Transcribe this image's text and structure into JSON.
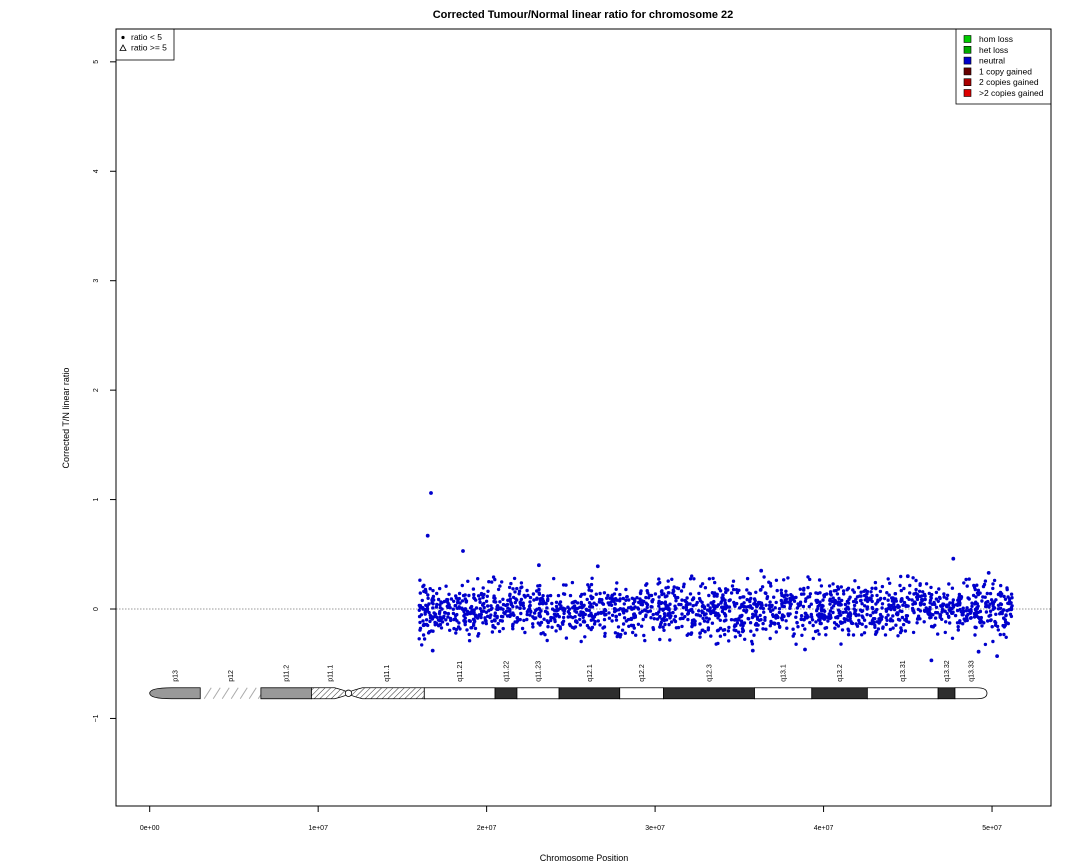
{
  "chart_data": {
    "type": "scatter",
    "title": "Corrected Tumour/Normal linear ratio for chromosome  22",
    "xlabel": "Chromosome Position",
    "ylabel": "Corrected T/N linear ratio",
    "xlim": [
      -2000000,
      53500000
    ],
    "ylim": [
      -1.8,
      5.3
    ],
    "x_ticks": [
      {
        "value": 0,
        "label": "0e+00"
      },
      {
        "value": 10000000,
        "label": "1e+07"
      },
      {
        "value": 20000000,
        "label": "2e+07"
      },
      {
        "value": 30000000,
        "label": "3e+07"
      },
      {
        "value": 40000000,
        "label": "4e+07"
      },
      {
        "value": 50000000,
        "label": "5e+07"
      }
    ],
    "y_ticks": [
      {
        "value": -1,
        "label": "−1"
      },
      {
        "value": 0,
        "label": "0"
      },
      {
        "value": 1,
        "label": "1"
      },
      {
        "value": 2,
        "label": "2"
      },
      {
        "value": 3,
        "label": "3"
      },
      {
        "value": 4,
        "label": "4"
      },
      {
        "value": 5,
        "label": "5"
      }
    ],
    "reference_line": 0,
    "grid": false,
    "series": [
      {
        "name": "neutral",
        "color": "#0000cc",
        "marker": "circle",
        "x_range": [
          16000000,
          51200000
        ],
        "y_mean": 0.0,
        "y_sd": 0.12,
        "count": 1900,
        "outliers": [
          {
            "x": 16700000,
            "y": 1.06
          },
          {
            "x": 16500000,
            "y": 0.67
          },
          {
            "x": 18600000,
            "y": 0.53
          },
          {
            "x": 47700000,
            "y": 0.46
          },
          {
            "x": 23100000,
            "y": 0.4
          },
          {
            "x": 26600000,
            "y": 0.39
          },
          {
            "x": 36300000,
            "y": 0.35
          },
          {
            "x": 49800000,
            "y": 0.33
          },
          {
            "x": 45000000,
            "y": 0.3
          },
          {
            "x": 46400000,
            "y": -0.47
          },
          {
            "x": 50300000,
            "y": -0.43
          },
          {
            "x": 16800000,
            "y": -0.38
          },
          {
            "x": 35800000,
            "y": -0.38
          },
          {
            "x": 38900000,
            "y": -0.37
          },
          {
            "x": 49200000,
            "y": -0.39
          }
        ]
      }
    ],
    "marker_legend": {
      "position": "top-left",
      "items": [
        {
          "label": "ratio < 5",
          "symbol": "dot"
        },
        {
          "label": "ratio >= 5",
          "symbol": "triangle"
        }
      ]
    },
    "state_legend": {
      "position": "top-right",
      "items": [
        {
          "label": "hom loss",
          "color": "#00cc00"
        },
        {
          "label": "het loss",
          "color": "#00aa00"
        },
        {
          "label": "neutral",
          "color": "#0000cc"
        },
        {
          "label": "1 copy gained",
          "color": "#660000"
        },
        {
          "label": "2 copies gained",
          "color": "#aa0000"
        },
        {
          "label": ">2 copies gained",
          "color": "#dd0000"
        }
      ]
    },
    "ideogram": {
      "y": -0.77,
      "bands": [
        {
          "name": "p13",
          "start": 0,
          "end": 3000000,
          "stain": "gvar"
        },
        {
          "name": "p12",
          "start": 3000000,
          "end": 6600000,
          "stain": "stalk"
        },
        {
          "name": "p11.2",
          "start": 6600000,
          "end": 9600000,
          "stain": "gvar"
        },
        {
          "name": "p11.1",
          "start": 9600000,
          "end": 11800000,
          "stain": "acen"
        },
        {
          "name": "q11.1",
          "start": 11800000,
          "end": 16300000,
          "stain": "acen"
        },
        {
          "name": "q11.21",
          "start": 16300000,
          "end": 20500000,
          "stain": "gneg"
        },
        {
          "name": "q11.22",
          "start": 20500000,
          "end": 21800000,
          "stain": "gpos"
        },
        {
          "name": "q11.23",
          "start": 21800000,
          "end": 24300000,
          "stain": "gneg"
        },
        {
          "name": "q12.1",
          "start": 24300000,
          "end": 27900000,
          "stain": "gpos"
        },
        {
          "name": "q12.2",
          "start": 27900000,
          "end": 30500000,
          "stain": "gneg"
        },
        {
          "name": "q12.3",
          "start": 30500000,
          "end": 35900000,
          "stain": "gpos"
        },
        {
          "name": "q13.1",
          "start": 35900000,
          "end": 39300000,
          "stain": "gneg"
        },
        {
          "name": "q13.2",
          "start": 39300000,
          "end": 42600000,
          "stain": "gpos"
        },
        {
          "name": "q13.31",
          "start": 42600000,
          "end": 46800000,
          "stain": "gneg"
        },
        {
          "name": "q13.32",
          "start": 46800000,
          "end": 47800000,
          "stain": "gpos"
        },
        {
          "name": "q13.33",
          "start": 47800000,
          "end": 49700000,
          "stain": "gneg"
        }
      ]
    }
  }
}
